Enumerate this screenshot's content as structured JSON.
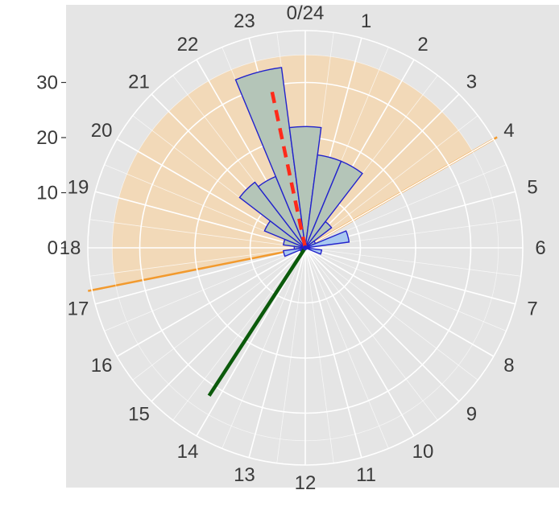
{
  "chart_data": {
    "type": "polar-bar",
    "title": "",
    "theta_unit": "hour",
    "theta_range": [
      0,
      24
    ],
    "hour_labels": [
      "0/24",
      "1",
      "2",
      "3",
      "4",
      "5",
      "6",
      "7",
      "8",
      "9",
      "10",
      "11",
      "12",
      "13",
      "14",
      "15",
      "16",
      "17",
      "18",
      "19",
      "20",
      "21",
      "22",
      "23"
    ],
    "radial_ticks": [
      0,
      10,
      20,
      30
    ],
    "radial_tick_labels": [
      "0",
      "10",
      "20",
      "30"
    ],
    "radial_range": [
      0,
      40
    ],
    "highlight_arc": {
      "start_hour": 17.25,
      "end_hour": 28.0,
      "radius": 35
    },
    "bars": [
      {
        "hour": 18,
        "value": 2
      },
      {
        "hour": 19,
        "value": 4
      },
      {
        "hour": 20,
        "value": 8
      },
      {
        "hour": 21,
        "value": 15
      },
      {
        "hour": 22,
        "value": 14
      },
      {
        "hour": 23,
        "value": 33
      },
      {
        "hour": 0,
        "value": 22
      },
      {
        "hour": 1,
        "value": 17
      },
      {
        "hour": 2,
        "value": 17
      },
      {
        "hour": 3,
        "value": 6
      },
      {
        "hour": 4,
        "value": 2
      },
      {
        "hour": 5,
        "value": 8
      },
      {
        "hour": 6,
        "value": 0
      },
      {
        "hour": 7,
        "value": 3
      },
      {
        "hour": 8,
        "value": 0
      },
      {
        "hour": 9,
        "value": 0
      },
      {
        "hour": 10,
        "value": 0
      },
      {
        "hour": 11,
        "value": 0
      },
      {
        "hour": 12,
        "value": 0
      },
      {
        "hour": 13,
        "value": 0
      },
      {
        "hour": 14,
        "value": 0
      },
      {
        "hour": 15,
        "value": 0
      },
      {
        "hour": 16,
        "value": 1
      },
      {
        "hour": 17,
        "value": 4
      }
    ],
    "mean_direction_hour": 23.2,
    "mean_direction_length": 30,
    "reference_line": {
      "hour": 14.2,
      "length": 32
    },
    "colors": {
      "panel_bg": "#e5e5e5",
      "grid": "#ffffff",
      "arc_fill": "#f5d7b0",
      "arc_edge": "#f29a2e",
      "bar_fill_in_arc": "#b4c5b8",
      "bar_fill_out_arc": "#a8c8f0",
      "bar_edge": "#2222cc",
      "mean_line": "#ff2a1a",
      "ref_line": "#0b5a0b"
    }
  }
}
